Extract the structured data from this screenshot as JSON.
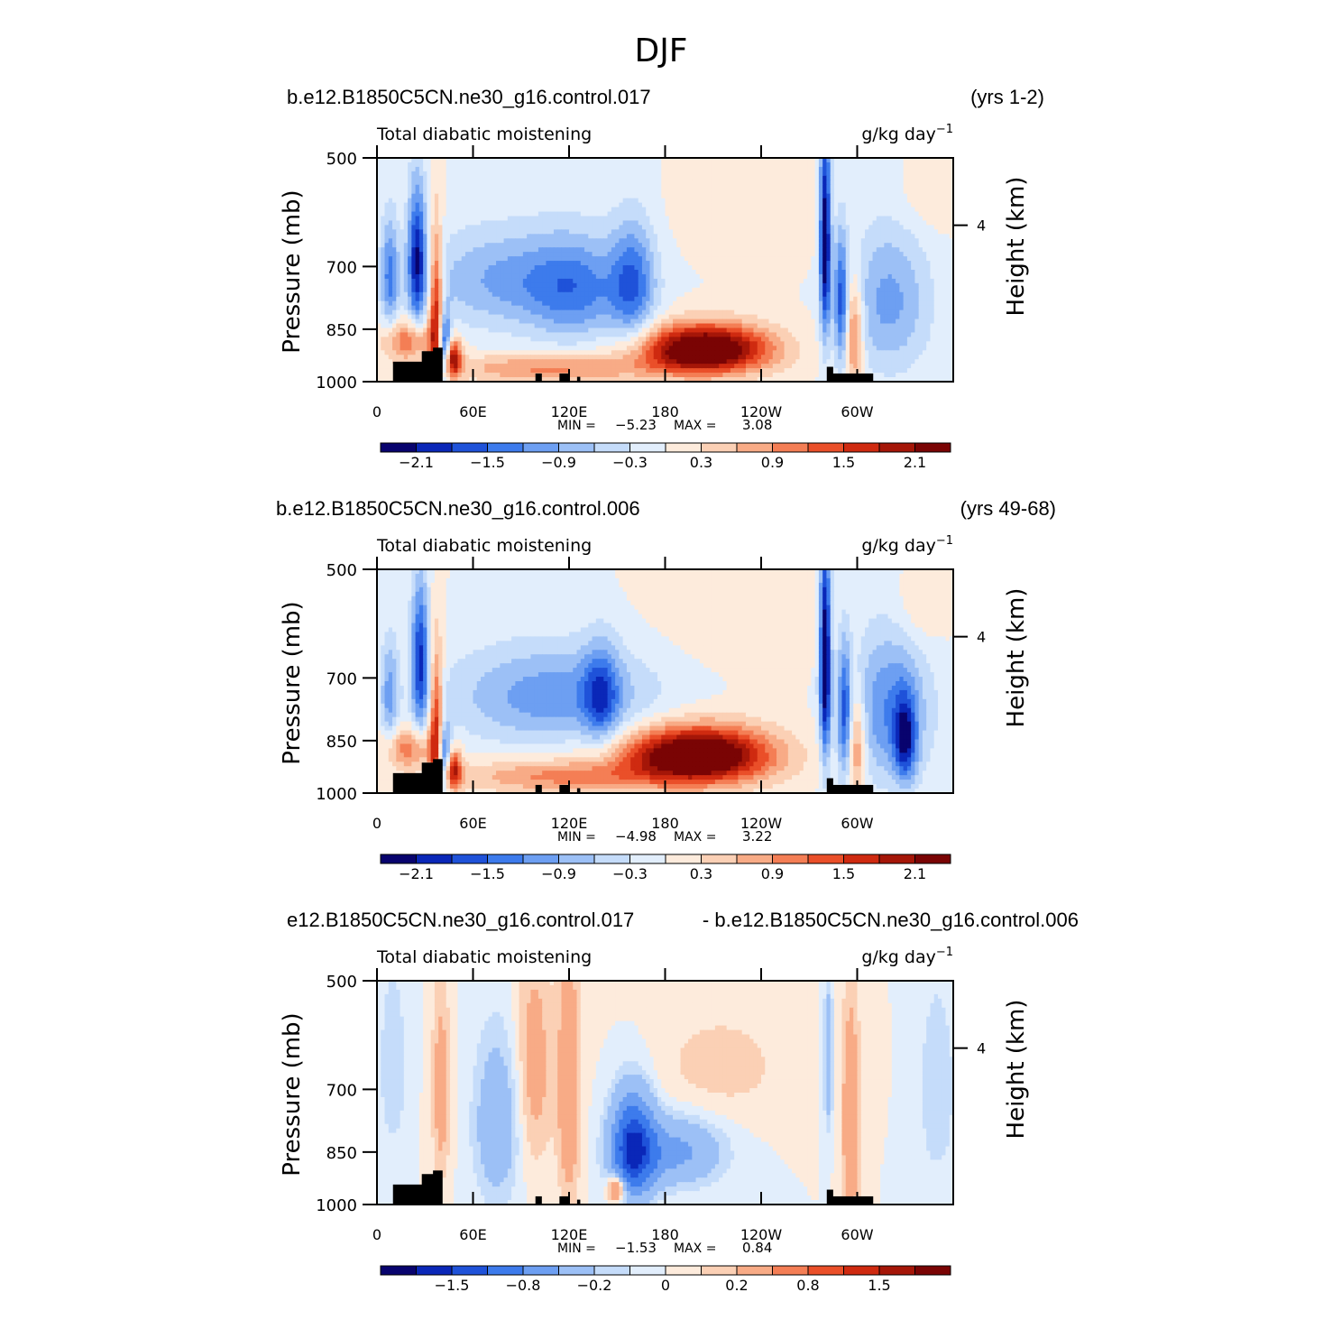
{
  "figure_title": "DJF",
  "colors": {
    "palette": [
      "#08036e",
      "#0a27b8",
      "#1f52d9",
      "#3d7bec",
      "#6d9ff2",
      "#9cc0f6",
      "#c5dcfa",
      "#e2eefc",
      "#fdebdc",
      "#fbd0b5",
      "#f8ab86",
      "#f47e55",
      "#ea4f29",
      "#cf2a10",
      "#a51608",
      "#7a0404"
    ],
    "land": "#000000"
  },
  "chart_data": [
    {
      "type": "heatmap",
      "case_left": "b.e12.B1850C5CN.ne30_g16.control.017",
      "case_right": "(yrs 1-2)",
      "variable": "Total diabatic moistening",
      "units_base": "g/kg day",
      "units_exp": "−1",
      "ylabel": "Pressure (mb)",
      "ylabel_right": "Height (km)",
      "yticks": [
        "500",
        "700",
        "850",
        "1000"
      ],
      "ytick_values": [
        500,
        700,
        850,
        1000
      ],
      "ylim": [
        1000,
        500
      ],
      "right_tick": {
        "label": "4",
        "pressure": 616
      },
      "xticks": [
        "0",
        "60E",
        "120E",
        "180",
        "120W",
        "60W"
      ],
      "xtick_values": [
        0,
        60,
        120,
        180,
        240,
        300
      ],
      "xlim": [
        0,
        360
      ],
      "min_label": "MIN =",
      "min_value": "−5.23",
      "max_label": "MAX =",
      "max_value": "3.08",
      "colorbar_labels": [
        "−2.1",
        "−1.5",
        "−0.9",
        "−0.3",
        "0.3",
        "0.9",
        "1.5",
        "2.1"
      ],
      "colorbar_levels": [
        -2.1,
        -1.8,
        -1.5,
        -1.2,
        -0.9,
        -0.6,
        -0.3,
        0,
        0.3,
        0.6,
        0.9,
        1.2,
        1.5,
        1.8,
        2.1
      ],
      "features": [
        {
          "lon": 25,
          "p": 680,
          "wlon": 4,
          "wp": 110,
          "value": -1.9
        },
        {
          "lon": 8,
          "p": 720,
          "wlon": 4,
          "wp": 90,
          "value": -1.2
        },
        {
          "lon": 37,
          "p": 820,
          "wlon": 3,
          "wp": 140,
          "value": 2.1
        },
        {
          "lon": 42,
          "p": 900,
          "wlon": 3,
          "wp": 60,
          "value": -2.4
        },
        {
          "lon": 47,
          "p": 930,
          "wlon": 4,
          "wp": 40,
          "value": 2.2
        },
        {
          "lon": 20,
          "p": 880,
          "wlon": 12,
          "wp": 40,
          "value": 1.2
        },
        {
          "lon": 85,
          "p": 730,
          "wlon": 40,
          "wp": 80,
          "value": -1.0
        },
        {
          "lon": 160,
          "p": 740,
          "wlon": 10,
          "wp": 100,
          "value": -1.3
        },
        {
          "lon": 125,
          "p": 760,
          "wlon": 20,
          "wp": 90,
          "value": -0.9
        },
        {
          "lon": 110,
          "p": 960,
          "wlon": 45,
          "wp": 30,
          "value": 1.0
        },
        {
          "lon": 205,
          "p": 905,
          "wlon": 28,
          "wp": 48,
          "value": 3.0
        },
        {
          "lon": 320,
          "p": 780,
          "wlon": 18,
          "wp": 130,
          "value": -1.0
        },
        {
          "lon": 280,
          "p": 640,
          "wlon": 2.5,
          "wp": 150,
          "value": -2.5
        },
        {
          "lon": 290,
          "p": 780,
          "wlon": 3,
          "wp": 120,
          "value": -1.5
        },
        {
          "lon": 298,
          "p": 860,
          "wlon": 4,
          "wp": 100,
          "value": 1.3
        },
        {
          "lon": 345,
          "p": 560,
          "wlon": 15,
          "wp": 50,
          "value": 0.3
        },
        {
          "lon": 240,
          "p": 590,
          "wlon": 40,
          "wp": 60,
          "value": 0.2
        }
      ]
    },
    {
      "type": "heatmap",
      "case_left": "b.e12.B1850C5CN.ne30_g16.control.006",
      "case_right": "(yrs 49-68)",
      "variable": "Total diabatic moistening",
      "units_base": "g/kg day",
      "units_exp": "−1",
      "ylabel": "Pressure (mb)",
      "ylabel_right": "Height (km)",
      "yticks": [
        "500",
        "700",
        "850",
        "1000"
      ],
      "ytick_values": [
        500,
        700,
        850,
        1000
      ],
      "ylim": [
        1000,
        500
      ],
      "right_tick": {
        "label": "4",
        "pressure": 616
      },
      "xticks": [
        "0",
        "60E",
        "120E",
        "180",
        "120W",
        "60W"
      ],
      "xtick_values": [
        0,
        60,
        120,
        180,
        240,
        300
      ],
      "xlim": [
        0,
        360
      ],
      "min_label": "MIN =",
      "min_value": "−4.98",
      "max_label": "MAX =",
      "max_value": "3.22",
      "colorbar_labels": [
        "−2.1",
        "−1.5",
        "−0.9",
        "−0.3",
        "0.3",
        "0.9",
        "1.5",
        "2.1"
      ],
      "colorbar_levels": [
        -2.1,
        -1.8,
        -1.5,
        -1.2,
        -0.9,
        -0.6,
        -0.3,
        0,
        0.3,
        0.6,
        0.9,
        1.2,
        1.5,
        1.8,
        2.1
      ],
      "features": [
        {
          "lon": 27,
          "p": 660,
          "wlon": 4,
          "wp": 110,
          "value": -1.8
        },
        {
          "lon": 8,
          "p": 740,
          "wlon": 4,
          "wp": 90,
          "value": -1.0
        },
        {
          "lon": 37,
          "p": 830,
          "wlon": 3,
          "wp": 140,
          "value": 1.9
        },
        {
          "lon": 42,
          "p": 900,
          "wlon": 3,
          "wp": 60,
          "value": -2.2
        },
        {
          "lon": 47,
          "p": 930,
          "wlon": 4,
          "wp": 40,
          "value": 2.0
        },
        {
          "lon": 20,
          "p": 870,
          "wlon": 12,
          "wp": 40,
          "value": 1.1
        },
        {
          "lon": 110,
          "p": 740,
          "wlon": 45,
          "wp": 80,
          "value": -1.1
        },
        {
          "lon": 140,
          "p": 740,
          "wlon": 8,
          "wp": 80,
          "value": -1.2
        },
        {
          "lon": 115,
          "p": 950,
          "wlon": 45,
          "wp": 35,
          "value": 1.0
        },
        {
          "lon": 200,
          "p": 890,
          "wlon": 32,
          "wp": 55,
          "value": 3.1
        },
        {
          "lon": 320,
          "p": 770,
          "wlon": 18,
          "wp": 130,
          "value": -1.2
        },
        {
          "lon": 280,
          "p": 660,
          "wlon": 2.5,
          "wp": 160,
          "value": -2.6
        },
        {
          "lon": 292,
          "p": 780,
          "wlon": 3,
          "wp": 120,
          "value": -1.4
        },
        {
          "lon": 300,
          "p": 860,
          "wlon": 4,
          "wp": 100,
          "value": 1.2
        },
        {
          "lon": 330,
          "p": 850,
          "wlon": 5,
          "wp": 80,
          "value": -1.6
        },
        {
          "lon": 340,
          "p": 560,
          "wlon": 12,
          "wp": 50,
          "value": 0.4
        },
        {
          "lon": 230,
          "p": 590,
          "wlon": 45,
          "wp": 70,
          "value": 0.2
        }
      ]
    },
    {
      "type": "heatmap",
      "case_left": "e12.B1850C5CN.ne30_g16.control.017",
      "case_right": "- b.e12.B1850C5CN.ne30_g16.control.006",
      "variable": "Total diabatic moistening",
      "units_base": "g/kg day",
      "units_exp": "−1",
      "ylabel": "Pressure (mb)",
      "ylabel_right": "Height (km)",
      "yticks": [
        "500",
        "700",
        "850",
        "1000"
      ],
      "ytick_values": [
        500,
        700,
        850,
        1000
      ],
      "ylim": [
        1000,
        500
      ],
      "right_tick": {
        "label": "4",
        "pressure": 616
      },
      "xticks": [
        "0",
        "60E",
        "120E",
        "180",
        "120W",
        "60W"
      ],
      "xtick_values": [
        0,
        60,
        120,
        180,
        240,
        300
      ],
      "xlim": [
        0,
        360
      ],
      "min_label": "MIN =",
      "min_value": "−1.53",
      "max_label": "MAX =",
      "max_value": "0.84",
      "colorbar_labels": [
        "−1.5",
        "−0.8",
        "−0.2",
        "0",
        "0.2",
        "0.8",
        "1.5"
      ],
      "colorbar_levels": [
        -2,
        -1.5,
        -1.2,
        -0.8,
        -0.5,
        -0.2,
        -0.1,
        0,
        0.1,
        0.2,
        0.5,
        0.8,
        1.2,
        1.5,
        2
      ],
      "features": [
        {
          "lon": 160,
          "p": 840,
          "wlon": 9,
          "wp": 90,
          "value": -1.5
        },
        {
          "lon": 185,
          "p": 850,
          "wlon": 20,
          "wp": 60,
          "value": -0.6
        },
        {
          "lon": 150,
          "p": 950,
          "wlon": 4,
          "wp": 30,
          "value": 0.8
        },
        {
          "lon": 120,
          "p": 700,
          "wlon": 5,
          "wp": 200,
          "value": 0.4
        },
        {
          "lon": 98,
          "p": 650,
          "wlon": 8,
          "wp": 160,
          "value": 0.3
        },
        {
          "lon": 75,
          "p": 780,
          "wlon": 10,
          "wp": 140,
          "value": -0.4
        },
        {
          "lon": 40,
          "p": 700,
          "wlon": 4,
          "wp": 160,
          "value": 0.3
        },
        {
          "lon": 10,
          "p": 650,
          "wlon": 6,
          "wp": 130,
          "value": -0.2
        },
        {
          "lon": 296,
          "p": 780,
          "wlon": 4,
          "wp": 200,
          "value": 0.4
        },
        {
          "lon": 282,
          "p": 640,
          "wlon": 2,
          "wp": 100,
          "value": -0.4
        },
        {
          "lon": 350,
          "p": 700,
          "wlon": 8,
          "wp": 150,
          "value": -0.2
        },
        {
          "lon": 215,
          "p": 650,
          "wlon": 30,
          "wp": 80,
          "value": 0.15
        }
      ]
    }
  ],
  "panels_ui": [
    {
      "plot_left": 418,
      "plot_top": 175
    },
    {
      "plot_left": 418,
      "plot_top": 631
    },
    {
      "plot_left": 418,
      "plot_top": 1087
    }
  ]
}
